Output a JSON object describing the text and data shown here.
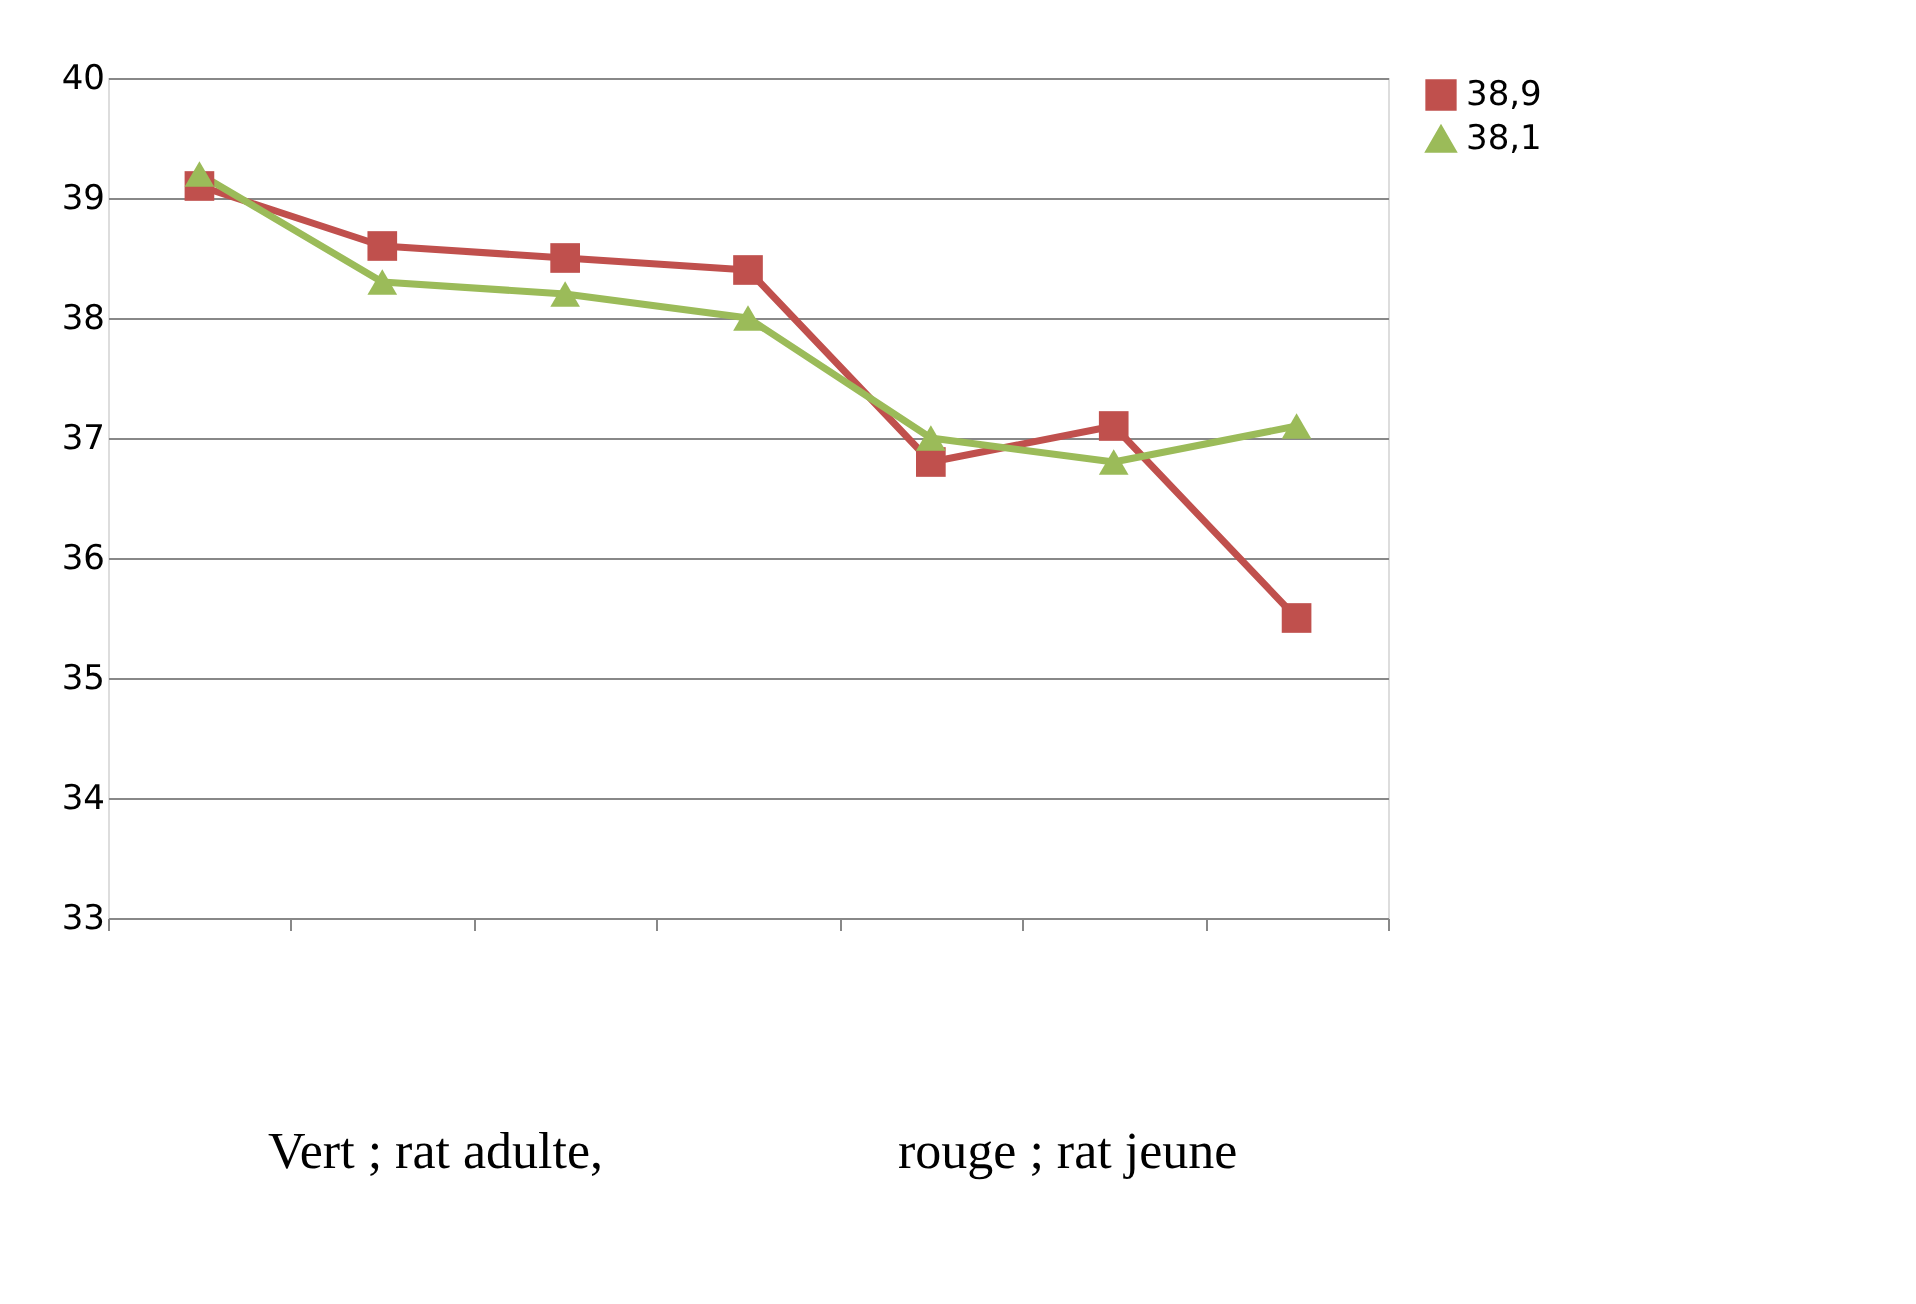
{
  "chart_data": {
    "type": "line",
    "categories": [
      null,
      null,
      null,
      null,
      null,
      null,
      null
    ],
    "series": [
      {
        "name": "38,9",
        "color": "#c0504d",
        "marker": "square",
        "values": [
          39.1,
          38.6,
          38.5,
          38.4,
          36.8,
          37.1,
          35.5
        ]
      },
      {
        "name": "38,1",
        "color": "#9bbb59",
        "marker": "triangle",
        "values": [
          39.2,
          38.3,
          38.2,
          38.0,
          37.0,
          36.8,
          37.1
        ]
      }
    ],
    "ylim": [
      33,
      40
    ],
    "yticks": [
      33,
      34,
      35,
      36,
      37,
      38,
      39,
      40
    ],
    "grid": "y",
    "legend": "right",
    "line_style": "solid",
    "annotations": [
      "Vert ; rat adulte,",
      "rouge ; rat jeune"
    ]
  }
}
